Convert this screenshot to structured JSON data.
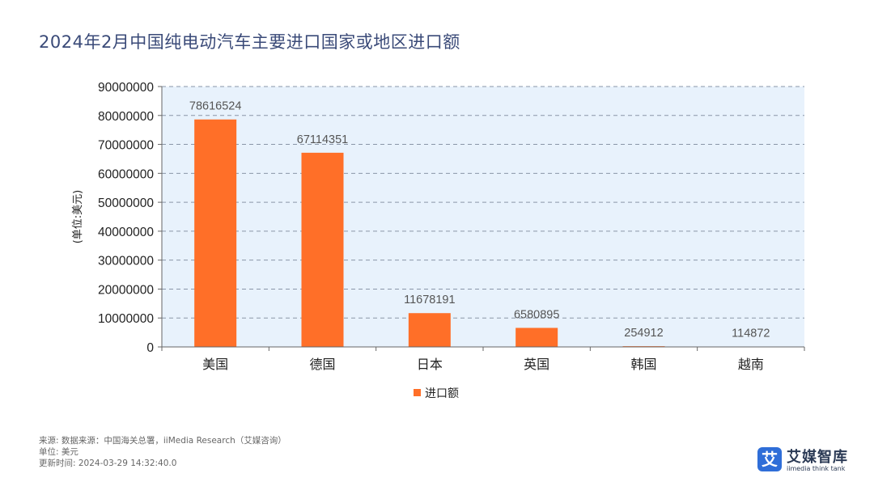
{
  "page_title": "2024年2月中国纯电动汽车主要进口国家或地区进口额",
  "chart_data": {
    "type": "bar",
    "categories": [
      "美国",
      "德国",
      "日本",
      "英国",
      "韩国",
      "越南"
    ],
    "series": [
      {
        "name": "进口额",
        "values": [
          78616524,
          67114351,
          11678191,
          6580895,
          254912,
          114872
        ]
      }
    ],
    "data_labels": [
      "78616524",
      "67114351",
      "11678191",
      "6580895",
      "254912",
      "114872"
    ],
    "ylabel": "(单位:美元)",
    "ylim": [
      0,
      90000000
    ],
    "yticks": [
      "0",
      "10000000",
      "20000000",
      "30000000",
      "40000000",
      "50000000",
      "60000000",
      "70000000",
      "80000000",
      "90000000"
    ],
    "grid": true,
    "legend": "bottom-center",
    "bar_color": "#ff6f28",
    "plot_background": "#e8f2fc",
    "grid_color": "#8a96a8"
  },
  "footer": {
    "source": "来源: 数据来源：中国海关总署，iiMedia Research（艾媒咨询）",
    "unit": "单位: 美元",
    "updated": "更新时间: 2024-03-29 14:32:40.0"
  },
  "logo": {
    "badge": "艾",
    "name": "艾媒智库",
    "sub": "iimedia think tank"
  }
}
